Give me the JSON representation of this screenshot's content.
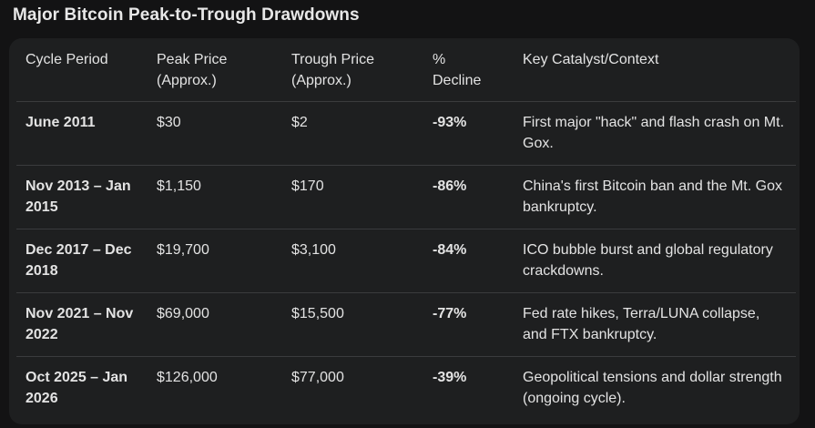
{
  "title": "Major Bitcoin Peak-to-Trough Drawdowns",
  "table": {
    "headers": [
      "Cycle Period",
      "Peak Price (Approx.)",
      "Trough Price (Approx.)",
      "% Decline",
      "Key Catalyst/Context"
    ],
    "rows": [
      {
        "period": "June 2011",
        "peak": "$30",
        "trough": "$2",
        "decline": "-93%",
        "context": "First major \"hack\" and flash crash on Mt. Gox."
      },
      {
        "period": "Nov 2013 – Jan 2015",
        "peak": "$1,150",
        "trough": "$170",
        "decline": "-86%",
        "context": "China's first Bitcoin ban and the Mt. Gox bankruptcy."
      },
      {
        "period": "Dec 2017 – Dec 2018",
        "peak": "$19,700",
        "trough": "$3,100",
        "decline": "-84%",
        "context": "ICO bubble burst and global regulatory crackdowns."
      },
      {
        "period": "Nov 2021 – Nov 2022",
        "peak": "$69,000",
        "trough": "$15,500",
        "decline": "-77%",
        "context": "Fed rate hikes, Terra/LUNA collapse, and FTX bankruptcy."
      },
      {
        "period": "Oct 2025 – Jan 2026",
        "peak": "$126,000",
        "trough": "$77,000",
        "decline": "-39%",
        "context": "Geopolitical tensions and dollar strength (ongoing cycle)."
      }
    ]
  }
}
